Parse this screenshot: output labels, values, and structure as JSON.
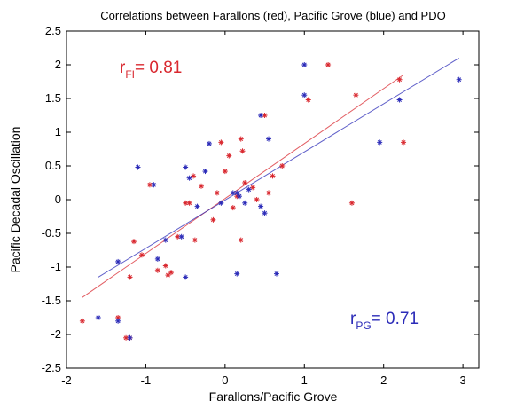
{
  "chart_data": {
    "type": "scatter",
    "title": "Correlations between Farallons (red), Pacific Grove (blue) and PDO",
    "xlabel": "Farallons/Pacific Grove",
    "ylabel": "Pacific Decadal Oscillation",
    "xlim": [
      -2,
      3.2
    ],
    "ylim": [
      -2.5,
      2.5
    ],
    "xticks": [
      "-2",
      "-1",
      "0",
      "1",
      "2",
      "3"
    ],
    "yticks": [
      "-2.5",
      "-2",
      "-1.5",
      "-1",
      "-0.5",
      "0",
      "0.5",
      "1",
      "1.5",
      "2",
      "2.5"
    ],
    "xtick_values": [
      -2,
      -1,
      0,
      1,
      2,
      3
    ],
    "ytick_values": [
      -2.5,
      -2,
      -1.5,
      -1,
      -0.5,
      0,
      0.5,
      1,
      1.5,
      2,
      2.5
    ],
    "grid": false,
    "marker": "asterisk",
    "series": [
      {
        "color": "#d9282f",
        "points": [
          [
            -1.8,
            -1.8
          ],
          [
            -1.35,
            -1.75
          ],
          [
            -1.2,
            -2.05
          ],
          [
            -1.25,
            -2.05
          ],
          [
            -1.2,
            -1.15
          ],
          [
            -1.15,
            -0.62
          ],
          [
            -1.05,
            -0.82
          ],
          [
            -0.95,
            0.22
          ],
          [
            -0.85,
            -1.05
          ],
          [
            -0.75,
            -0.98
          ],
          [
            -0.72,
            -1.12
          ],
          [
            -0.68,
            -1.08
          ],
          [
            -0.6,
            -0.55
          ],
          [
            -0.5,
            -0.05
          ],
          [
            -0.45,
            -0.05
          ],
          [
            -0.4,
            0.35
          ],
          [
            -0.38,
            -0.6
          ],
          [
            -0.3,
            0.2
          ],
          [
            -0.15,
            -0.3
          ],
          [
            -0.1,
            0.1
          ],
          [
            -0.05,
            0.85
          ],
          [
            0.0,
            0.42
          ],
          [
            0.05,
            0.65
          ],
          [
            0.1,
            -0.12
          ],
          [
            0.15,
            0.05
          ],
          [
            0.2,
            0.9
          ],
          [
            0.2,
            -0.6
          ],
          [
            0.22,
            0.72
          ],
          [
            0.25,
            0.25
          ],
          [
            0.35,
            0.18
          ],
          [
            0.4,
            0.0
          ],
          [
            0.5,
            1.25
          ],
          [
            0.55,
            0.1
          ],
          [
            0.6,
            0.35
          ],
          [
            0.72,
            0.5
          ],
          [
            1.05,
            1.48
          ],
          [
            1.3,
            2.0
          ],
          [
            1.6,
            -0.05
          ],
          [
            1.65,
            1.55
          ],
          [
            2.2,
            1.78
          ],
          [
            2.25,
            0.85
          ]
        ]
      },
      {
        "color": "#2b2bb8",
        "points": [
          [
            -1.6,
            -1.75
          ],
          [
            -1.35,
            -1.8
          ],
          [
            -1.2,
            -2.05
          ],
          [
            -1.35,
            -0.92
          ],
          [
            -1.1,
            0.48
          ],
          [
            -0.9,
            0.22
          ],
          [
            -0.85,
            -0.88
          ],
          [
            -0.75,
            -0.6
          ],
          [
            -0.55,
            -0.55
          ],
          [
            -0.5,
            0.48
          ],
          [
            -0.5,
            -1.15
          ],
          [
            -0.45,
            0.32
          ],
          [
            -0.35,
            -0.1
          ],
          [
            -0.25,
            0.42
          ],
          [
            -0.2,
            0.83
          ],
          [
            -0.05,
            -0.05
          ],
          [
            0.1,
            0.1
          ],
          [
            0.15,
            0.1
          ],
          [
            0.15,
            -1.1
          ],
          [
            0.18,
            0.05
          ],
          [
            0.25,
            -0.05
          ],
          [
            0.3,
            0.15
          ],
          [
            0.45,
            1.25
          ],
          [
            0.45,
            -0.1
          ],
          [
            0.5,
            -0.2
          ],
          [
            0.55,
            0.9
          ],
          [
            0.65,
            -1.1
          ],
          [
            1.0,
            2.0
          ],
          [
            1.0,
            1.55
          ],
          [
            1.95,
            0.85
          ],
          [
            2.2,
            1.48
          ],
          [
            2.95,
            1.78
          ]
        ]
      }
    ],
    "fit_lines": [
      {
        "color": "#d9282f",
        "x": [
          -1.8,
          2.25
        ],
        "y": [
          -1.45,
          1.85
        ]
      },
      {
        "color": "#2b2bb8",
        "x": [
          -1.6,
          2.95
        ],
        "y": [
          -1.15,
          2.1
        ]
      }
    ],
    "annotations": [
      {
        "main": "r",
        "sub": "FI",
        "value": "= 0.81",
        "color": "#d9282f"
      },
      {
        "main": "r",
        "sub": "PG",
        "value": "= 0.71",
        "color": "#2b2bb8"
      }
    ]
  }
}
